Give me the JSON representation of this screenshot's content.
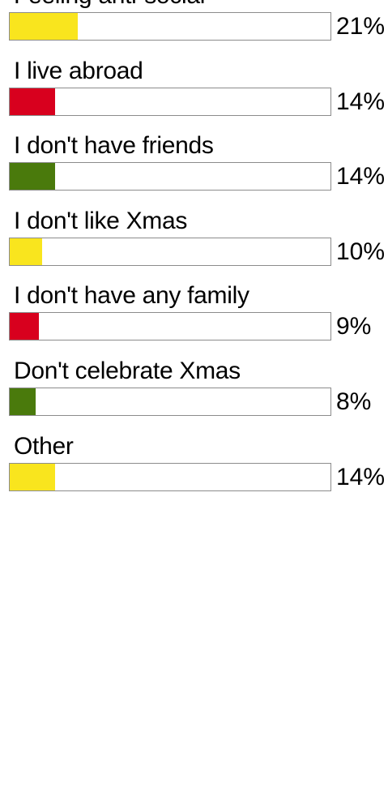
{
  "chart_data": {
    "type": "bar",
    "orientation": "horizontal",
    "title": "",
    "xlabel": "",
    "ylabel": "",
    "xlim": [
      0,
      100
    ],
    "unit": "%",
    "categories": [
      "Feeling anti-social",
      "I live abroad",
      "I don't have friends",
      "I don't like Xmas",
      "I don't have any family",
      "Don't celebrate Xmas",
      "Other"
    ],
    "values": [
      21,
      14,
      14,
      10,
      9,
      8,
      14
    ],
    "value_labels": [
      "21%",
      "14%",
      "14%",
      "10%",
      "9%",
      "8%",
      "14%"
    ],
    "colors": [
      "#f9e51e",
      "#d8001e",
      "#4a7a0c",
      "#f9e51e",
      "#d8001e",
      "#4a7a0c",
      "#f9e51e"
    ],
    "grid": false,
    "legend": "none"
  }
}
